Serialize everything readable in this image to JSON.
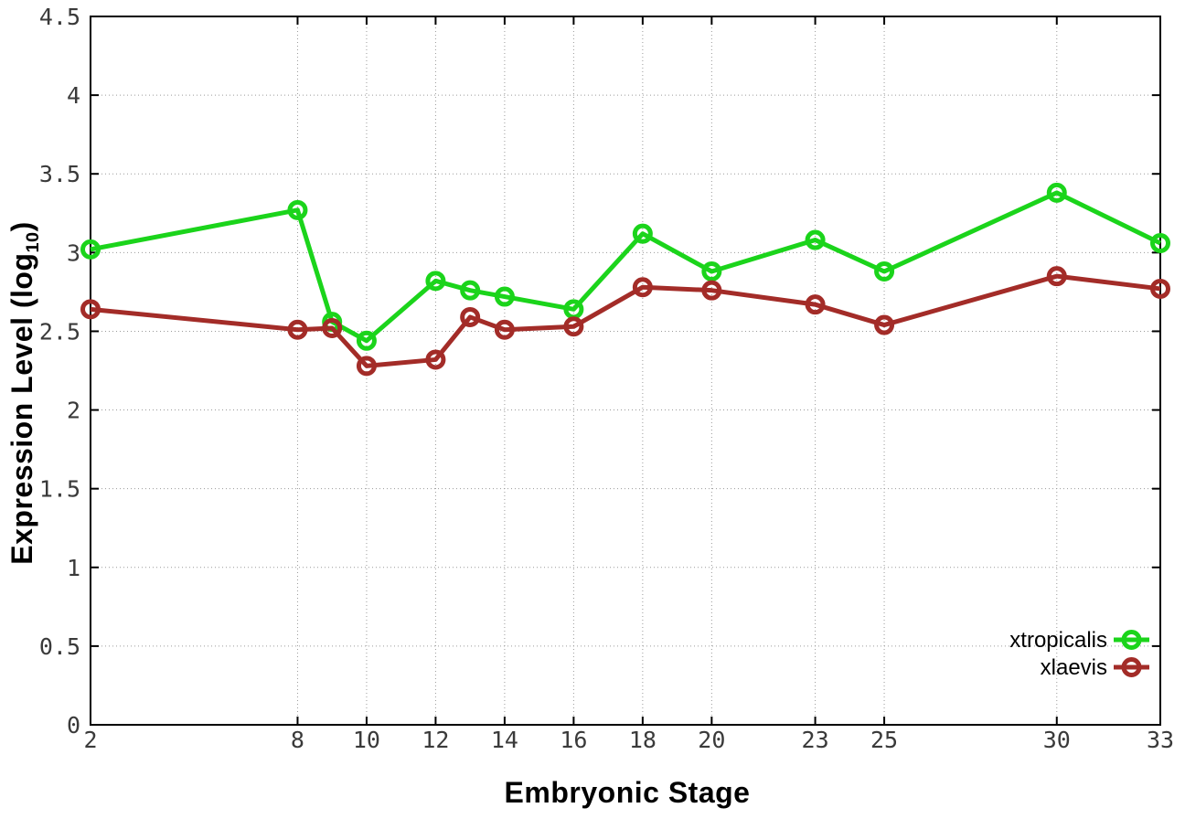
{
  "figure": {
    "background": "#ffffff",
    "border_color": "#000000",
    "grid_color": "#9a9a9a",
    "tick_label_color": "#3a3a3a"
  },
  "chart_data": {
    "type": "line",
    "title": "",
    "xlabel": "Embryonic Stage",
    "ylabel": "Expression Level (log10)",
    "ylabel_parts": {
      "main": "Expression Level (log",
      "sub": "10",
      "close": ")"
    },
    "x": [
      2,
      8,
      9,
      10,
      12,
      13,
      14,
      16,
      18,
      20,
      23,
      25,
      30,
      33
    ],
    "series": [
      {
        "name": "xtropicalis",
        "color": "#1bd41b",
        "marker": "open-circle",
        "values": [
          3.02,
          3.27,
          2.56,
          2.44,
          2.82,
          2.76,
          2.72,
          2.64,
          3.12,
          2.88,
          3.08,
          2.88,
          3.38,
          3.06
        ]
      },
      {
        "name": "xlaevis",
        "color": "#a32c28",
        "marker": "open-circle",
        "values": [
          2.64,
          2.51,
          2.52,
          2.28,
          2.32,
          2.59,
          2.51,
          2.53,
          2.78,
          2.76,
          2.67,
          2.54,
          2.85,
          2.77
        ]
      }
    ],
    "xticks": [
      2,
      8,
      10,
      12,
      14,
      16,
      18,
      20,
      23,
      25,
      30,
      33
    ],
    "ytick_labels": [
      "0",
      "0.5",
      "1",
      "1.5",
      "2",
      "2.5",
      "3",
      "3.5",
      "4",
      "4.5"
    ],
    "ytick_values": [
      0,
      0.5,
      1,
      1.5,
      2,
      2.5,
      3,
      3.5,
      4,
      4.5
    ],
    "xlim": [
      2,
      33
    ],
    "ylim": [
      0,
      4.5
    ],
    "grid": "dotted both axes",
    "legend_position": "inside bottom-right"
  }
}
